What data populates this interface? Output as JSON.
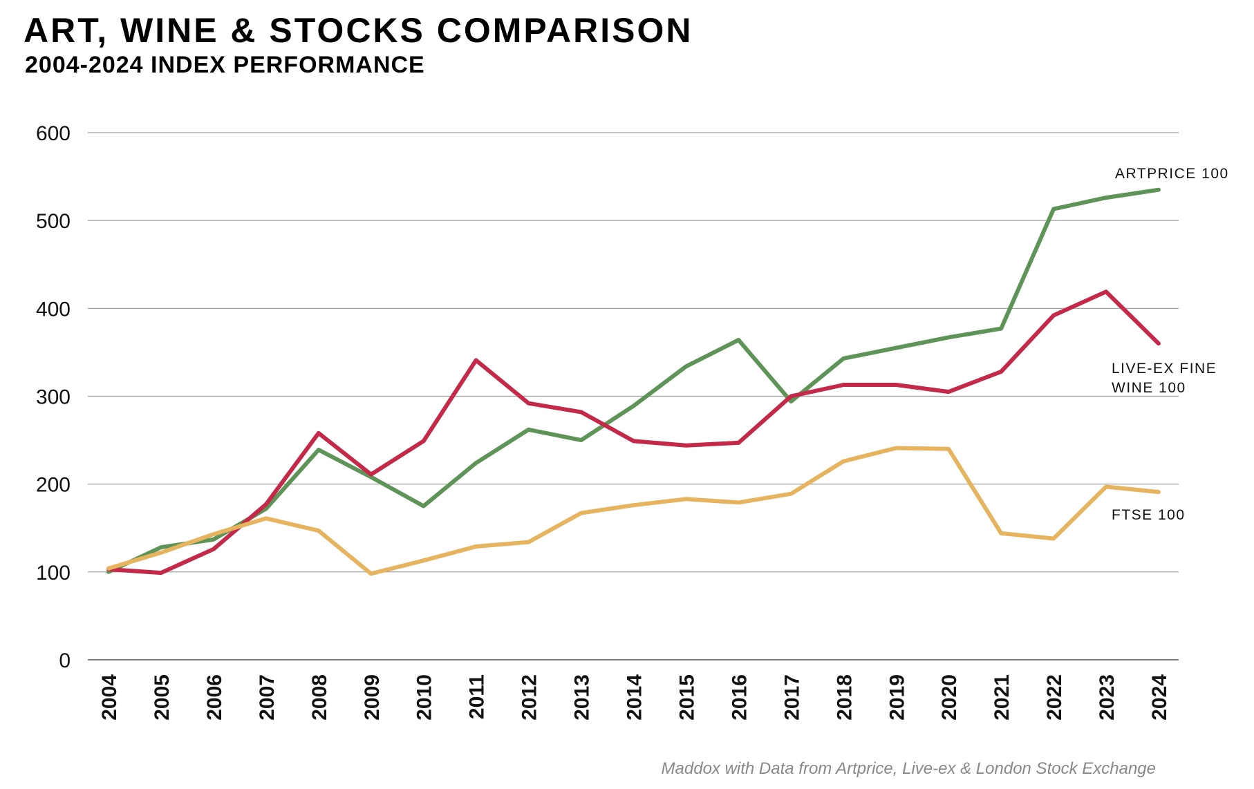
{
  "title": "ART, WINE & STOCKS COMPARISON",
  "subtitle": "2004-2024 INDEX PERFORMANCE",
  "source": "Maddox with Data from Artprice, Live-ex & London Stock Exchange",
  "chart_data": {
    "type": "line",
    "title": "ART, WINE & STOCKS COMPARISON",
    "subtitle": "2004-2024 INDEX PERFORMANCE",
    "xlabel": "",
    "ylabel": "",
    "ylim": [
      0,
      600
    ],
    "yticks": [
      0,
      100,
      200,
      300,
      400,
      500,
      600
    ],
    "grid": true,
    "legend": "inline labels at right end of each line",
    "categories": [
      "2004",
      "2005",
      "2006",
      "2007",
      "2008",
      "2009",
      "2010",
      "2011",
      "2012",
      "2013",
      "2014",
      "2015",
      "2016",
      "2017",
      "2018",
      "2019",
      "2020",
      "2021",
      "2022",
      "2023",
      "2024"
    ],
    "series": [
      {
        "name": "ARTPRICE 100",
        "label_lines": [
          "ARTPRICE 100"
        ],
        "color": "#5f9458",
        "values": [
          100,
          128,
          137,
          172,
          239,
          208,
          175,
          224,
          262,
          250,
          289,
          334,
          364,
          294,
          343,
          355,
          367,
          377,
          513,
          526,
          535
        ]
      },
      {
        "name": "LIVE-EX FINE WINE 100",
        "label_lines": [
          "LIVE-EX FINE",
          "WINE 100"
        ],
        "color": "#c4294a",
        "values": [
          103,
          99,
          126,
          177,
          258,
          211,
          249,
          341,
          292,
          282,
          249,
          244,
          247,
          300,
          313,
          313,
          305,
          328,
          392,
          419,
          360
        ]
      },
      {
        "name": "FTSE 100",
        "label_lines": [
          "FTSE 100"
        ],
        "color": "#e6b45e",
        "values": [
          104,
          122,
          143,
          161,
          147,
          98,
          113,
          129,
          134,
          167,
          176,
          183,
          179,
          189,
          226,
          241,
          240,
          144,
          138,
          197,
          191
        ]
      }
    ]
  }
}
